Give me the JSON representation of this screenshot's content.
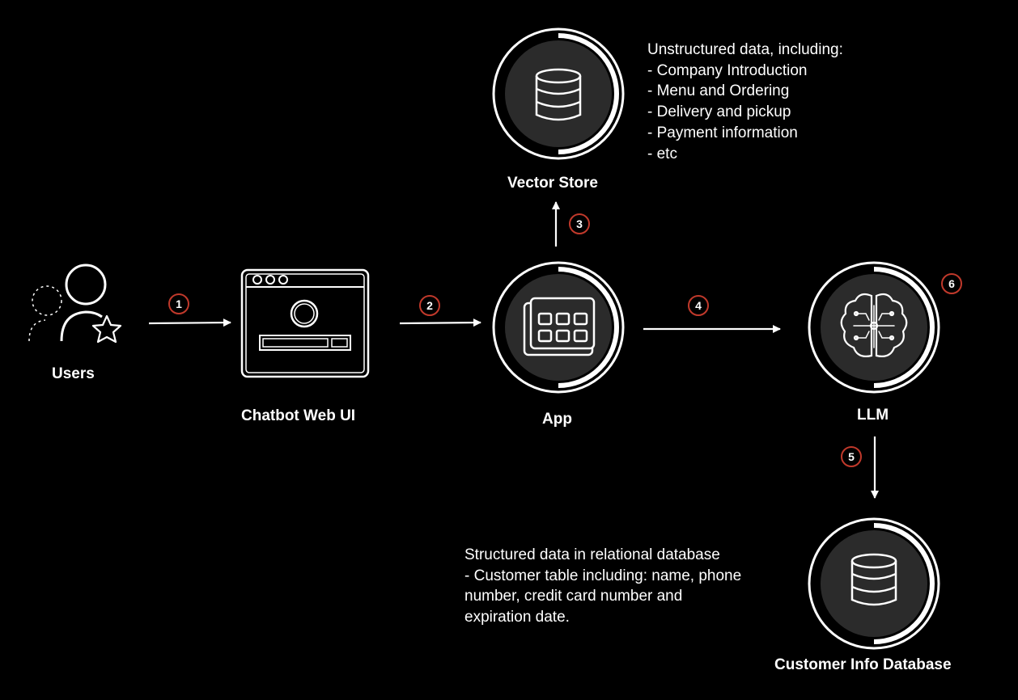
{
  "nodes": {
    "users": {
      "label": "Users"
    },
    "chatbot": {
      "label": "Chatbot Web UI"
    },
    "app": {
      "label": "App"
    },
    "vector_store": {
      "label": "Vector Store"
    },
    "llm": {
      "label": "LLM"
    },
    "customer_db": {
      "label": "Customer Info Database"
    }
  },
  "steps": [
    "1",
    "2",
    "3",
    "4",
    "5",
    "6"
  ],
  "notes": {
    "vector_store": [
      "Unstructured data, including:",
      "- Company Introduction",
      "- Menu and Ordering",
      "- Delivery and pickup",
      "- Payment information",
      "- etc"
    ],
    "customer_db": [
      "Structured data in relational database",
      "- Customer table including: name, phone",
      "number, credit card number and",
      "expiration date."
    ]
  },
  "colors": {
    "background": "#000000",
    "badge_border": "#c0392b",
    "icon_fill": "#2b2b2b",
    "line": "#ffffff"
  }
}
